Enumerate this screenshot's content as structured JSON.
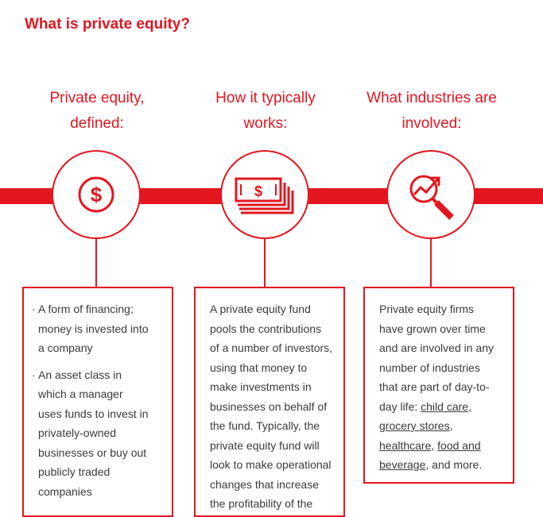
{
  "title": "What is private equity?",
  "colors": {
    "accent": "#e3161f",
    "text": "#3a3a3a"
  },
  "columns": [
    {
      "heading_line1": "Private equity,",
      "heading_line2": "defined:",
      "icon": "dollar-circle-icon",
      "bullets": [
        {
          "marker": "·",
          "lines": [
            "A form of financing;",
            "money is invested into",
            "a company"
          ]
        },
        {
          "marker": "·",
          "lines": [
            "An asset class in",
            "which a manager",
            "uses funds to invest in",
            "privately-owned",
            "businesses or buy out",
            "publicly traded",
            "companies"
          ]
        }
      ]
    },
    {
      "heading_line1": "How it typically",
      "heading_line2": "works:",
      "icon": "cash-stack-icon",
      "lines": [
        "A private equity fund",
        "pools the contributions",
        "of a number of investors,",
        "using that money to",
        "make investments in",
        "businesses on behalf of",
        "the fund. Typically, the",
        "private equity fund will",
        "look to make operational",
        "changes that increase",
        "the profitability of the"
      ]
    },
    {
      "heading_line1": "What industries are",
      "heading_line2": "involved:",
      "icon": "growth-chart-magnifier-icon",
      "lines": [
        "Private equity firms",
        "have grown over time",
        "and are involved in any",
        "number of industries",
        "that are part of day-to-"
      ],
      "line6_prefix": "day life: ",
      "link_child_care": "child care",
      "sep1": ",",
      "link_grocery": "grocery stores",
      "sep2": ",",
      "link_healthcare": "healthcare",
      "sep3": ", ",
      "link_food_line1": "food and",
      "link_food_line2": "beverage",
      "suffix": ", and more."
    }
  ]
}
